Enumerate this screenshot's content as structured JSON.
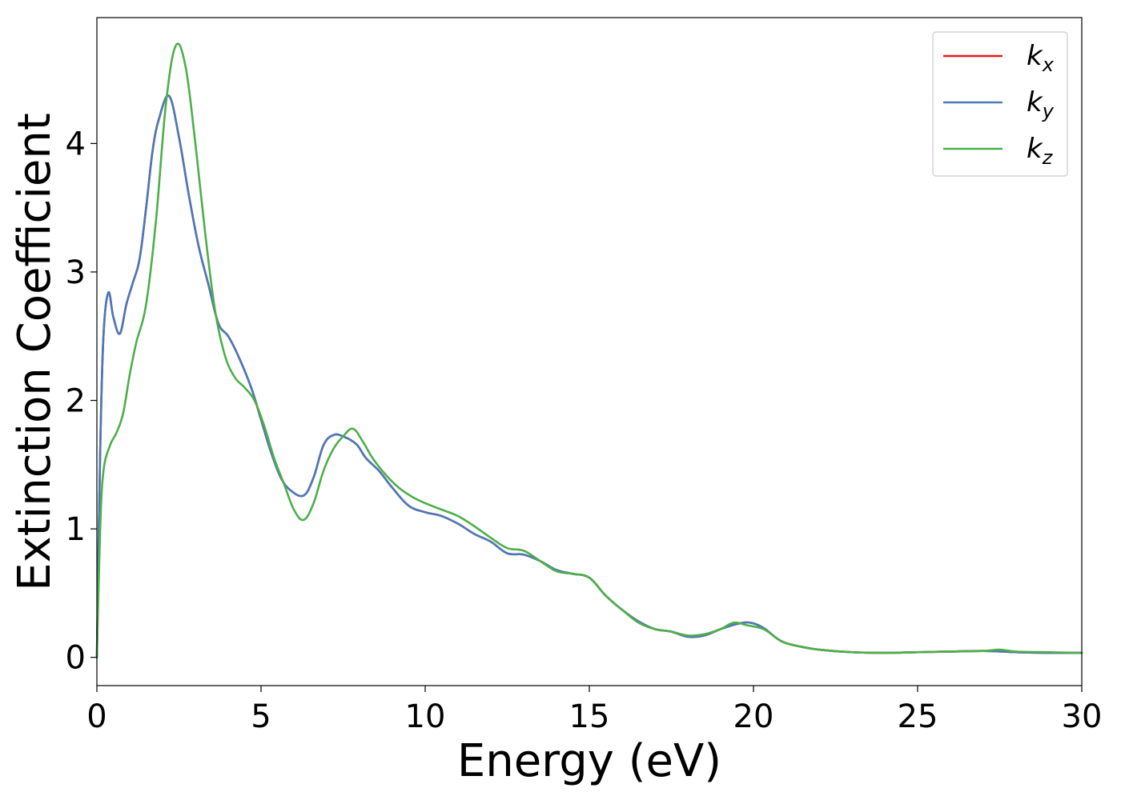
{
  "chart_data": {
    "type": "line",
    "title": "",
    "xlabel": "Energy (eV)",
    "ylabel": "Extinction Coefficient",
    "xlim": [
      0,
      30
    ],
    "ylim": [
      -0.22,
      4.98
    ],
    "xticks": [
      0,
      5,
      10,
      15,
      20,
      25,
      30
    ],
    "xtick_labels": [
      "0",
      "5",
      "10",
      "15",
      "20",
      "25",
      "30"
    ],
    "yticks": [
      0,
      1,
      2,
      3,
      4
    ],
    "ytick_labels": [
      "0",
      "1",
      "2",
      "3",
      "4"
    ],
    "grid": false,
    "legend_position": "top-right",
    "series": [
      {
        "name": "k",
        "subscript": "x",
        "color": "#e41a1c",
        "x": [
          0,
          0.1,
          0.2,
          0.35,
          0.5,
          0.7,
          0.9,
          1.1,
          1.3,
          1.5,
          1.7,
          1.9,
          2.2,
          2.5,
          2.8,
          3.1,
          3.4,
          3.7,
          4.0,
          4.3,
          4.7,
          5.0,
          5.3,
          5.6,
          5.9,
          6.3,
          6.6,
          6.9,
          7.2,
          7.5,
          7.9,
          8.2,
          8.6,
          9.0,
          9.5,
          10.0,
          10.5,
          11.0,
          11.5,
          12.0,
          12.5,
          13.0,
          13.5,
          14.0,
          14.5,
          15.0,
          15.5,
          16.0,
          16.5,
          17.0,
          17.5,
          18.0,
          18.5,
          19.0,
          19.5,
          19.9,
          20.3,
          20.7,
          21.0,
          21.5,
          22.0,
          23.0,
          24.0,
          25.0,
          26.0,
          27.0,
          28.0,
          29.0,
          30.0
        ],
        "y": [
          0.0,
          1.6,
          2.5,
          2.84,
          2.65,
          2.52,
          2.75,
          2.92,
          3.1,
          3.5,
          3.95,
          4.2,
          4.37,
          4.05,
          3.6,
          3.2,
          2.9,
          2.6,
          2.5,
          2.35,
          2.1,
          1.85,
          1.6,
          1.4,
          1.3,
          1.26,
          1.4,
          1.65,
          1.73,
          1.72,
          1.66,
          1.55,
          1.45,
          1.32,
          1.18,
          1.13,
          1.1,
          1.04,
          0.96,
          0.9,
          0.81,
          0.8,
          0.75,
          0.68,
          0.65,
          0.62,
          0.48,
          0.37,
          0.28,
          0.22,
          0.2,
          0.16,
          0.17,
          0.22,
          0.26,
          0.27,
          0.23,
          0.15,
          0.11,
          0.08,
          0.06,
          0.04,
          0.035,
          0.04,
          0.045,
          0.05,
          0.04,
          0.035,
          0.035
        ]
      },
      {
        "name": "k",
        "subscript": "y",
        "color": "#4a7ab8",
        "x": [
          0,
          0.1,
          0.2,
          0.35,
          0.5,
          0.7,
          0.9,
          1.1,
          1.3,
          1.5,
          1.7,
          1.9,
          2.2,
          2.5,
          2.8,
          3.1,
          3.4,
          3.7,
          4.0,
          4.3,
          4.7,
          5.0,
          5.3,
          5.6,
          5.9,
          6.3,
          6.6,
          6.9,
          7.2,
          7.5,
          7.9,
          8.2,
          8.6,
          9.0,
          9.5,
          10.0,
          10.5,
          11.0,
          11.5,
          12.0,
          12.5,
          13.0,
          13.5,
          14.0,
          14.5,
          15.0,
          15.5,
          16.0,
          16.5,
          17.0,
          17.5,
          18.0,
          18.5,
          19.0,
          19.5,
          19.9,
          20.3,
          20.7,
          21.0,
          21.5,
          22.0,
          23.0,
          24.0,
          25.0,
          26.0,
          27.0,
          28.0,
          29.0,
          30.0
        ],
        "y": [
          0.0,
          1.6,
          2.5,
          2.84,
          2.65,
          2.52,
          2.75,
          2.92,
          3.1,
          3.5,
          3.95,
          4.2,
          4.37,
          4.05,
          3.6,
          3.2,
          2.9,
          2.6,
          2.5,
          2.35,
          2.1,
          1.85,
          1.6,
          1.4,
          1.3,
          1.26,
          1.4,
          1.65,
          1.73,
          1.72,
          1.66,
          1.55,
          1.45,
          1.32,
          1.18,
          1.13,
          1.1,
          1.04,
          0.96,
          0.9,
          0.81,
          0.8,
          0.75,
          0.68,
          0.65,
          0.62,
          0.48,
          0.37,
          0.28,
          0.22,
          0.2,
          0.16,
          0.17,
          0.22,
          0.26,
          0.27,
          0.23,
          0.15,
          0.11,
          0.08,
          0.06,
          0.04,
          0.035,
          0.04,
          0.045,
          0.05,
          0.04,
          0.035,
          0.035
        ]
      },
      {
        "name": "k",
        "subscript": "z",
        "color": "#4daf4a",
        "x": [
          0,
          0.1,
          0.2,
          0.4,
          0.6,
          0.8,
          1.0,
          1.2,
          1.5,
          1.8,
          2.1,
          2.4,
          2.7,
          3.0,
          3.3,
          3.6,
          3.9,
          4.2,
          4.5,
          4.8,
          5.1,
          5.4,
          5.7,
          6.0,
          6.3,
          6.6,
          6.9,
          7.2,
          7.5,
          7.8,
          8.1,
          8.4,
          8.8,
          9.2,
          9.6,
          10.0,
          10.5,
          11.0,
          11.5,
          12.0,
          12.5,
          13.0,
          13.5,
          14.0,
          14.5,
          15.0,
          15.5,
          16.0,
          16.5,
          17.0,
          17.5,
          18.0,
          18.5,
          19.0,
          19.4,
          19.8,
          20.3,
          20.7,
          21.0,
          21.5,
          22.0,
          23.0,
          24.0,
          25.0,
          26.0,
          27.0,
          27.5,
          28.0,
          29.0,
          30.0
        ],
        "y": [
          0.0,
          1.0,
          1.45,
          1.65,
          1.75,
          1.9,
          2.2,
          2.45,
          2.75,
          3.4,
          4.3,
          4.76,
          4.6,
          4.0,
          3.3,
          2.7,
          2.35,
          2.18,
          2.1,
          2.0,
          1.8,
          1.55,
          1.35,
          1.15,
          1.07,
          1.2,
          1.45,
          1.62,
          1.72,
          1.78,
          1.68,
          1.55,
          1.42,
          1.32,
          1.25,
          1.2,
          1.15,
          1.1,
          1.02,
          0.93,
          0.85,
          0.83,
          0.75,
          0.67,
          0.65,
          0.62,
          0.48,
          0.37,
          0.27,
          0.22,
          0.2,
          0.17,
          0.18,
          0.22,
          0.27,
          0.25,
          0.22,
          0.15,
          0.11,
          0.08,
          0.06,
          0.04,
          0.035,
          0.04,
          0.045,
          0.05,
          0.06,
          0.045,
          0.04,
          0.035
        ]
      }
    ]
  }
}
